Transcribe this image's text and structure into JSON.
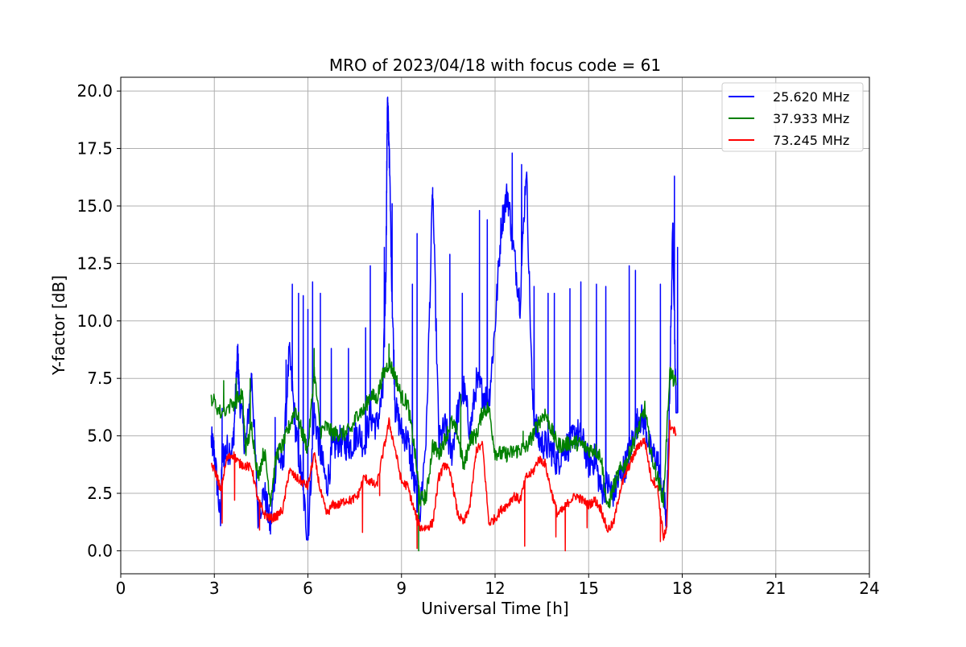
{
  "chart_data": {
    "type": "line",
    "title": "MRO of 2023/04/18 with focus code = 61",
    "xlabel": "Universal Time [h]",
    "ylabel": "Y-factor [dB]",
    "xlim": [
      0,
      24
    ],
    "ylim": [
      -1.0,
      20.6
    ],
    "xticks": [
      0,
      3,
      6,
      9,
      12,
      15,
      18,
      21,
      24
    ],
    "xtick_labels": [
      "0",
      "3",
      "6",
      "9",
      "12",
      "15",
      "18",
      "21",
      "24"
    ],
    "yticks": [
      0.0,
      2.5,
      5.0,
      7.5,
      10.0,
      12.5,
      15.0,
      17.5,
      20.0
    ],
    "ytick_labels": [
      "0.0",
      "2.5",
      "5.0",
      "7.5",
      "10.0",
      "12.5",
      "15.0",
      "17.5",
      "20.0"
    ],
    "grid": true,
    "legend_position": "top-right",
    "series": [
      {
        "name": "25.620 MHz",
        "color": "#0000ff",
        "x": [
          2.9,
          3.0,
          3.2,
          3.25,
          3.4,
          3.6,
          3.7,
          3.75,
          3.8,
          4.0,
          4.2,
          4.4,
          4.6,
          4.8,
          5.0,
          5.2,
          5.4,
          5.6,
          5.8,
          6.0,
          6.2,
          6.4,
          6.6,
          6.8,
          7.0,
          7.2,
          7.4,
          7.6,
          7.8,
          8.0,
          8.2,
          8.4,
          8.5,
          8.55,
          8.6,
          8.7,
          8.8,
          9.0,
          9.2,
          9.4,
          9.6,
          9.8,
          10.0,
          10.2,
          10.4,
          10.6,
          10.8,
          11.0,
          11.2,
          11.4,
          11.6,
          11.8,
          12.0,
          12.2,
          12.4,
          12.6,
          12.8,
          13.0,
          13.2,
          13.4,
          13.6,
          13.8,
          14.0,
          14.2,
          14.4,
          14.6,
          14.8,
          15.0,
          15.2,
          15.4,
          15.6,
          15.8,
          16.0,
          16.2,
          16.4,
          16.6,
          16.8,
          17.0,
          17.2,
          17.4,
          17.5,
          17.6,
          17.7,
          17.8
        ],
        "y": [
          4.8,
          4.3,
          1.2,
          4.1,
          4.4,
          4.5,
          7.2,
          8.6,
          6.8,
          4.4,
          7.7,
          1.5,
          2.6,
          1.0,
          4.3,
          3.6,
          8.6,
          5.4,
          3.1,
          0.5,
          6.0,
          4.3,
          2.8,
          4.4,
          4.8,
          4.6,
          4.6,
          5.2,
          4.6,
          5.9,
          5.4,
          6.8,
          12.0,
          19.7,
          17.8,
          11.0,
          6.2,
          5.2,
          4.8,
          3.0,
          1.7,
          5.2,
          15.8,
          4.7,
          5.4,
          4.2,
          6.0,
          7.0,
          5.2,
          7.3,
          6.9,
          6.5,
          9.8,
          14.2,
          15.6,
          13.0,
          10.8,
          16.8,
          6.4,
          4.8,
          4.6,
          4.4,
          3.8,
          4.5,
          4.6,
          5.2,
          4.8,
          3.8,
          4.0,
          2.6,
          2.9,
          2.5,
          3.2,
          3.8,
          4.8,
          5.8,
          5.6,
          4.2,
          4.0,
          2.4,
          1.2,
          7.2,
          14.2,
          6.0
        ],
        "spikes": [
          [
            3.25,
            6.2
          ],
          [
            4.2,
            7.7
          ],
          [
            4.95,
            5.8
          ],
          [
            5.3,
            8.3
          ],
          [
            5.5,
            11.6
          ],
          [
            5.7,
            11.2
          ],
          [
            5.85,
            11.1
          ],
          [
            6.0,
            10.5
          ],
          [
            6.15,
            11.7
          ],
          [
            6.4,
            11.2
          ],
          [
            6.75,
            8.8
          ],
          [
            7.3,
            8.8
          ],
          [
            7.85,
            9.7
          ],
          [
            8.0,
            12.4
          ],
          [
            8.45,
            13.2
          ],
          [
            8.55,
            19.7
          ],
          [
            8.6,
            17.8
          ],
          [
            8.7,
            15.1
          ],
          [
            9.35,
            11.6
          ],
          [
            9.5,
            13.8
          ],
          [
            10.0,
            15.8
          ],
          [
            10.55,
            12.9
          ],
          [
            10.95,
            11.2
          ],
          [
            11.5,
            14.8
          ],
          [
            11.75,
            14.4
          ],
          [
            12.2,
            14.2
          ],
          [
            12.4,
            15.6
          ],
          [
            12.55,
            17.3
          ],
          [
            12.85,
            16.8
          ],
          [
            13.25,
            11.5
          ],
          [
            13.7,
            11.2
          ],
          [
            13.9,
            11.2
          ],
          [
            14.4,
            11.4
          ],
          [
            14.75,
            11.7
          ],
          [
            15.25,
            11.6
          ],
          [
            15.55,
            11.5
          ],
          [
            16.3,
            12.4
          ],
          [
            16.5,
            12.2
          ],
          [
            17.3,
            11.6
          ],
          [
            17.7,
            14.2
          ],
          [
            17.75,
            16.3
          ],
          [
            17.85,
            13.2
          ]
        ]
      },
      {
        "name": "37.933 MHz",
        "color": "#008000",
        "x": [
          2.9,
          3.2,
          3.6,
          3.9,
          4.0,
          4.2,
          4.4,
          4.6,
          4.8,
          5.0,
          5.2,
          5.4,
          5.6,
          5.8,
          6.0,
          6.2,
          6.4,
          6.6,
          6.8,
          7.0,
          7.2,
          7.4,
          7.6,
          7.8,
          8.0,
          8.2,
          8.4,
          8.6,
          8.8,
          9.0,
          9.2,
          9.4,
          9.6,
          9.8,
          10.0,
          10.2,
          10.4,
          10.6,
          10.8,
          11.0,
          11.2,
          11.4,
          11.6,
          11.8,
          12.0,
          12.2,
          12.4,
          12.6,
          12.8,
          13.0,
          13.2,
          13.4,
          13.6,
          13.8,
          14.0,
          14.2,
          14.4,
          14.6,
          14.8,
          15.0,
          15.2,
          15.4,
          15.6,
          15.8,
          16.0,
          16.2,
          16.4,
          16.6,
          16.8,
          17.0,
          17.2,
          17.4,
          17.6,
          17.8
        ],
        "y": [
          6.7,
          6.0,
          6.4,
          6.8,
          4.4,
          5.4,
          3.2,
          4.4,
          2.2,
          4.2,
          4.6,
          5.4,
          6.2,
          5.2,
          4.4,
          7.8,
          5.2,
          5.4,
          5.1,
          5.1,
          5.1,
          5.3,
          6.0,
          6.1,
          6.8,
          6.6,
          7.6,
          8.2,
          7.6,
          6.7,
          6.4,
          4.6,
          2.2,
          2.4,
          4.6,
          4.2,
          4.9,
          5.6,
          5.1,
          3.6,
          4.9,
          5.0,
          6.1,
          6.2,
          4.3,
          4.2,
          4.2,
          4.3,
          4.4,
          4.5,
          5.0,
          5.6,
          6.0,
          5.3,
          4.6,
          4.6,
          4.7,
          4.7,
          4.6,
          4.4,
          4.4,
          4.1,
          1.8,
          2.8,
          3.5,
          3.8,
          4.6,
          5.3,
          6.2,
          4.2,
          3.2,
          2.2,
          7.8,
          7.2
        ],
        "spikes": [
          [
            3.3,
            7.4
          ],
          [
            3.7,
            7.5
          ],
          [
            4.15,
            7.5
          ],
          [
            6.2,
            8.8
          ],
          [
            8.6,
            9.0
          ],
          [
            9.55,
            0.0
          ],
          [
            10.9,
            6.8
          ],
          [
            12.9,
            5.2
          ]
        ]
      },
      {
        "name": "73.245 MHz",
        "color": "#ff0000",
        "x": [
          2.9,
          3.1,
          3.2,
          3.4,
          3.6,
          3.8,
          4.0,
          4.2,
          4.4,
          4.6,
          4.8,
          5.0,
          5.2,
          5.4,
          5.6,
          5.8,
          6.0,
          6.2,
          6.4,
          6.6,
          6.8,
          7.0,
          7.2,
          7.4,
          7.6,
          7.8,
          8.0,
          8.2,
          8.4,
          8.6,
          8.8,
          9.0,
          9.2,
          9.4,
          9.6,
          9.8,
          10.0,
          10.2,
          10.4,
          10.6,
          10.8,
          11.0,
          11.2,
          11.4,
          11.6,
          11.8,
          12.0,
          12.2,
          12.4,
          12.6,
          12.8,
          13.0,
          13.2,
          13.4,
          13.6,
          13.8,
          14.0,
          14.2,
          14.4,
          14.6,
          14.8,
          15.0,
          15.2,
          15.4,
          15.6,
          15.8,
          16.0,
          16.2,
          16.4,
          16.6,
          16.8,
          17.0,
          17.2,
          17.4,
          17.5,
          17.6,
          17.8
        ],
        "y": [
          3.8,
          3.2,
          2.6,
          4.0,
          4.2,
          3.8,
          3.7,
          3.6,
          2.2,
          1.6,
          1.4,
          1.5,
          1.8,
          3.5,
          3.2,
          3.0,
          2.8,
          4.2,
          2.6,
          1.6,
          2.0,
          2.0,
          2.2,
          2.2,
          2.4,
          3.2,
          3.0,
          2.8,
          4.2,
          5.6,
          4.4,
          3.0,
          2.8,
          1.8,
          1.0,
          1.0,
          1.2,
          3.2,
          3.8,
          3.2,
          1.6,
          1.2,
          2.0,
          4.4,
          4.6,
          1.2,
          1.4,
          1.8,
          2.0,
          2.4,
          2.2,
          3.2,
          3.4,
          4.0,
          3.8,
          2.6,
          1.6,
          1.8,
          2.2,
          2.4,
          2.2,
          2.0,
          2.2,
          1.8,
          0.9,
          1.2,
          2.6,
          3.4,
          4.0,
          4.6,
          4.8,
          3.2,
          2.8,
          0.6,
          0.9,
          5.5,
          5.1
        ],
        "spikes": [
          [
            3.25,
            1.2
          ],
          [
            3.65,
            2.2
          ],
          [
            4.45,
            0.9
          ],
          [
            7.75,
            0.8
          ],
          [
            8.3,
            2.4
          ],
          [
            9.5,
            0.1
          ],
          [
            12.95,
            0.2
          ],
          [
            13.95,
            0.6
          ],
          [
            14.25,
            0.0
          ],
          [
            14.95,
            1.0
          ],
          [
            17.3,
            0.4
          ]
        ]
      }
    ]
  }
}
